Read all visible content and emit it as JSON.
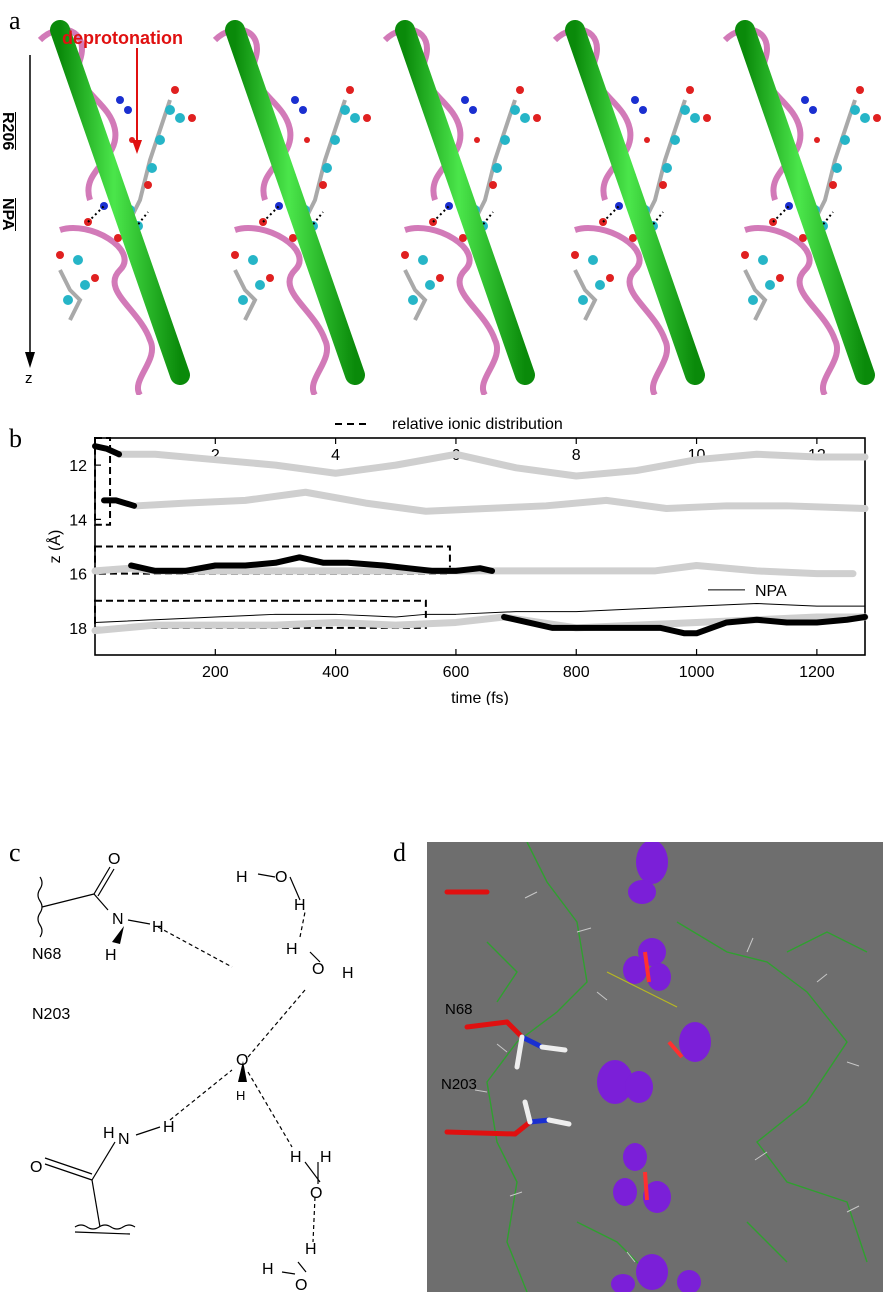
{
  "panel_a": {
    "letter": "a",
    "annotation": "deprotonation",
    "labels": [
      "R206",
      "NPA"
    ],
    "axis_label": "z"
  },
  "panel_b": {
    "letter": "b"
  },
  "panel_c": {
    "letter": "c",
    "labels": {
      "n68": "N68",
      "n203": "N203"
    }
  },
  "panel_d": {
    "letter": "d",
    "labels": {
      "n68": "N68",
      "n203": "N203"
    }
  },
  "chart_data": {
    "type": "line",
    "xlabel": "time (fs)",
    "ylabel": "z (Å)",
    "xlim": [
      0,
      1280
    ],
    "ylim": [
      19,
      11
    ],
    "x_ticks": [
      200,
      400,
      600,
      800,
      1000,
      1200
    ],
    "y_ticks": [
      12,
      14,
      16,
      18
    ],
    "x2_ticks": [
      2,
      4,
      6,
      8,
      10,
      12
    ],
    "x2lim": [
      0,
      12.8
    ],
    "legend": [
      {
        "label": "relative ionic distribution",
        "style": "dashed"
      },
      {
        "label": "NPA",
        "style": "thin solid"
      }
    ],
    "series": [
      {
        "style": "gray",
        "x": [
          40,
          100,
          200,
          300,
          400,
          500,
          600,
          700,
          800,
          900,
          1000,
          1100,
          1200,
          1280
        ],
        "y": [
          11.6,
          11.6,
          11.8,
          12.0,
          12.3,
          12.0,
          11.6,
          12.1,
          12.4,
          12.2,
          11.8,
          11.6,
          11.7,
          11.7
        ]
      },
      {
        "style": "black",
        "x": [
          0,
          20,
          40
        ],
        "y": [
          11.3,
          11.4,
          11.6
        ]
      },
      {
        "style": "gray",
        "x": [
          70,
          150,
          250,
          350,
          450,
          550,
          650,
          750,
          850,
          950,
          1050,
          1150,
          1280
        ],
        "y": [
          13.5,
          13.4,
          13.3,
          13.0,
          13.4,
          13.7,
          13.6,
          13.5,
          13.3,
          13.6,
          13.5,
          13.5,
          13.6
        ]
      },
      {
        "style": "black",
        "x": [
          15,
          35,
          65
        ],
        "y": [
          13.3,
          13.3,
          13.5
        ]
      },
      {
        "style": "gray",
        "x": [
          0,
          60,
          100,
          150,
          600,
          700,
          800,
          930,
          1000,
          1100,
          1200,
          1260
        ],
        "y": [
          15.9,
          15.8,
          15.9,
          15.9,
          15.9,
          15.9,
          15.9,
          15.9,
          15.7,
          15.9,
          16.0,
          16.0
        ]
      },
      {
        "style": "black",
        "x": [
          60,
          100,
          150,
          200,
          250,
          300,
          340,
          380,
          420,
          480,
          520,
          560,
          600,
          640,
          660
        ],
        "y": [
          15.7,
          15.9,
          15.9,
          15.7,
          15.7,
          15.6,
          15.4,
          15.6,
          15.6,
          15.7,
          15.8,
          15.9,
          15.9,
          15.8,
          15.9
        ]
      },
      {
        "style": "gray",
        "x": [
          0,
          100,
          200,
          300,
          400,
          500,
          600,
          680,
          800,
          900,
          1000,
          1100,
          1200,
          1280
        ],
        "y": [
          18.1,
          17.9,
          17.9,
          17.9,
          17.8,
          17.9,
          17.8,
          17.6,
          18.0,
          17.9,
          17.8,
          17.7,
          17.6,
          17.6
        ]
      },
      {
        "style": "black",
        "x": [
          680,
          720,
          760,
          800,
          900,
          940,
          980,
          1000,
          1050,
          1100,
          1150,
          1200,
          1250,
          1280
        ],
        "y": [
          17.6,
          17.8,
          18.0,
          18.0,
          18.0,
          18.0,
          18.2,
          18.2,
          17.8,
          17.7,
          17.8,
          17.8,
          17.7,
          17.6
        ]
      },
      {
        "style": "npa",
        "x": [
          0,
          100,
          200,
          300,
          400,
          500,
          550,
          600,
          700,
          800,
          900,
          1000,
          1100,
          1200,
          1280
        ],
        "y": [
          17.8,
          17.7,
          17.6,
          17.5,
          17.5,
          17.6,
          17.5,
          17.5,
          17.4,
          17.4,
          17.3,
          17.2,
          17.1,
          17.2,
          17.2
        ]
      }
    ],
    "dashed_boxes": [
      {
        "x": [
          0,
          25
        ],
        "y": [
          11.0,
          14.2
        ]
      },
      {
        "x": [
          0,
          590
        ],
        "y": [
          15.0,
          16.0
        ]
      },
      {
        "x": [
          0,
          550
        ],
        "y": [
          17.0,
          18.0
        ]
      }
    ]
  }
}
